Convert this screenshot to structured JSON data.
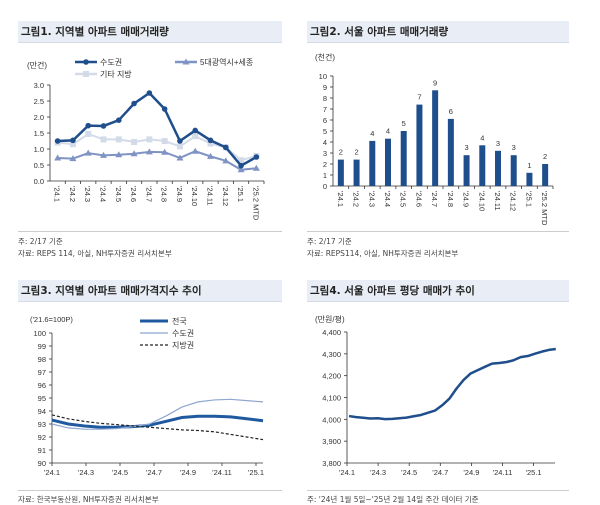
{
  "fig1": {
    "title": "그림1. 지역별 아파트 매매거래량",
    "note": "주: 2/17 기준",
    "source": "자료: REPS 114, 아실, NH투자증권 리서치본부"
  },
  "fig2": {
    "title": "그림2. 서울 아파트 매매거래량",
    "note": "주: 2/17 기준",
    "source": "자료: REPS114, 아실, NH투자증권 리서치본부"
  },
  "fig3": {
    "title": "그림3. 지역별 아파트 매매가격지수 추이",
    "source": "자료: 한국부동산원, NH투자증권 리서치본부"
  },
  "fig4": {
    "title": "그림4. 서울 아파트 평당 매매가 추이",
    "note": "주: '24년 1월 5일~'25년 2월 14일 주간 데이터 기준"
  },
  "chart_data": [
    {
      "type": "line",
      "unit": "(만건)",
      "ylim": [
        0,
        3.0
      ],
      "yticks": [
        "0.0",
        "0.5",
        "1.0",
        "1.5",
        "2.0",
        "2.5",
        "3.0"
      ],
      "categories": [
        "24.1",
        "24.2",
        "24.3",
        "24.4",
        "24.5",
        "24.6",
        "24.7",
        "24.8",
        "24.9",
        "24.10",
        "24.11",
        "24.12",
        "25.1",
        "25.2 MTD"
      ],
      "legend": "top",
      "series": [
        {
          "name": "수도권",
          "color": "#1f4e8c",
          "marker": "circle",
          "values": [
            1.25,
            1.27,
            1.73,
            1.72,
            1.9,
            2.42,
            2.75,
            2.25,
            1.25,
            1.58,
            1.27,
            1.05,
            0.48,
            0.75
          ]
        },
        {
          "name": "5대광역시+세종",
          "color": "#7f93c4",
          "marker": "triangle",
          "values": [
            0.72,
            0.7,
            0.87,
            0.8,
            0.82,
            0.85,
            0.91,
            0.9,
            0.72,
            0.93,
            0.77,
            0.63,
            0.35,
            0.4
          ]
        },
        {
          "name": "기타 지방",
          "color": "#d3dbe8",
          "marker": "square",
          "values": [
            1.2,
            1.15,
            1.47,
            1.3,
            1.3,
            1.22,
            1.3,
            1.25,
            1.08,
            1.4,
            1.17,
            1.05,
            0.65,
            0.78
          ]
        }
      ]
    },
    {
      "type": "bar",
      "unit": "(천건)",
      "ylim": [
        0,
        10
      ],
      "yticks": [
        "0",
        "1",
        "2",
        "3",
        "4",
        "5",
        "6",
        "7",
        "8",
        "9",
        "10"
      ],
      "categories": [
        "24.1",
        "24.2",
        "24.3",
        "24.4",
        "24.5",
        "24.6",
        "24.7",
        "24.8",
        "24.9",
        "24.10",
        "24.11",
        "24.12",
        "25.1",
        "25.2 MTD"
      ],
      "values": [
        2.4,
        2.4,
        4.1,
        4.3,
        5.0,
        7.4,
        8.7,
        6.1,
        2.8,
        3.7,
        3.2,
        2.8,
        1.2,
        2.0
      ],
      "labels": [
        "2",
        "2",
        "4",
        "4",
        "5",
        "7",
        "9",
        "6",
        "3",
        "4",
        "3",
        "3",
        "1",
        "2"
      ],
      "color": "#1f4e8c"
    },
    {
      "type": "line",
      "unit": "('21.6=100P)",
      "ylim": [
        90,
        100
      ],
      "yticks": [
        "90",
        "91",
        "92",
        "93",
        "94",
        "95",
        "96",
        "97",
        "98",
        "99",
        "100"
      ],
      "xticks": [
        "'24.1",
        "'24.3",
        "'24.5",
        "'24.7",
        "'24.9",
        "'24.11",
        "'25.1"
      ],
      "x": [
        "24.1",
        "24.2",
        "24.3",
        "24.4",
        "24.5",
        "24.6",
        "24.7",
        "24.8",
        "24.9",
        "24.10",
        "24.11",
        "24.12",
        "25.1",
        "25.2"
      ],
      "legend": "top-right",
      "series": [
        {
          "name": "전국",
          "color": "#1f5aa0",
          "style": "thick",
          "values": [
            93.3,
            93.0,
            92.85,
            92.75,
            92.75,
            92.8,
            92.9,
            93.2,
            93.5,
            93.6,
            93.6,
            93.55,
            93.4,
            93.25
          ]
        },
        {
          "name": "수도권",
          "color": "#8ea6d0",
          "style": "thin",
          "values": [
            93.0,
            92.7,
            92.6,
            92.6,
            92.65,
            92.8,
            93.0,
            93.6,
            94.3,
            94.7,
            94.85,
            94.9,
            94.8,
            94.7
          ]
        },
        {
          "name": "지방권",
          "color": "#222222",
          "style": "dashed",
          "values": [
            93.7,
            93.4,
            93.2,
            93.05,
            92.95,
            92.85,
            92.75,
            92.65,
            92.55,
            92.5,
            92.4,
            92.2,
            92.0,
            91.8
          ]
        }
      ]
    },
    {
      "type": "line",
      "unit": "(만원/평)",
      "ylim": [
        3800,
        4400
      ],
      "yticks": [
        "3,800",
        "3,900",
        "4,000",
        "4,100",
        "4,200",
        "4,300",
        "4,400"
      ],
      "xticks": [
        "'24.1",
        "'24.3",
        "'24.5",
        "'24.7",
        "'24.9",
        "'24.11",
        "'25.1"
      ],
      "color": "#1f4e8c",
      "x": [
        "2024-01-05",
        "2024-01-19",
        "2024-02-02",
        "2024-02-16",
        "2024-03-01",
        "2024-03-15",
        "2024-03-29",
        "2024-04-12",
        "2024-04-26",
        "2024-05-10",
        "2024-05-24",
        "2024-06-07",
        "2024-06-21",
        "2024-07-05",
        "2024-07-19",
        "2024-08-02",
        "2024-08-16",
        "2024-08-30",
        "2024-09-13",
        "2024-09-27",
        "2024-10-11",
        "2024-10-25",
        "2024-11-08",
        "2024-11-22",
        "2024-12-06",
        "2024-12-20",
        "2025-01-03",
        "2025-01-17",
        "2025-01-31",
        "2025-02-14"
      ],
      "values": [
        4015,
        4010,
        4007,
        4004,
        4005,
        4001,
        4002,
        4005,
        4008,
        4014,
        4020,
        4030,
        4040,
        4065,
        4095,
        4140,
        4180,
        4210,
        4225,
        4240,
        4255,
        4258,
        4262,
        4270,
        4285,
        4290,
        4300,
        4310,
        4318,
        4322
      ]
    }
  ]
}
